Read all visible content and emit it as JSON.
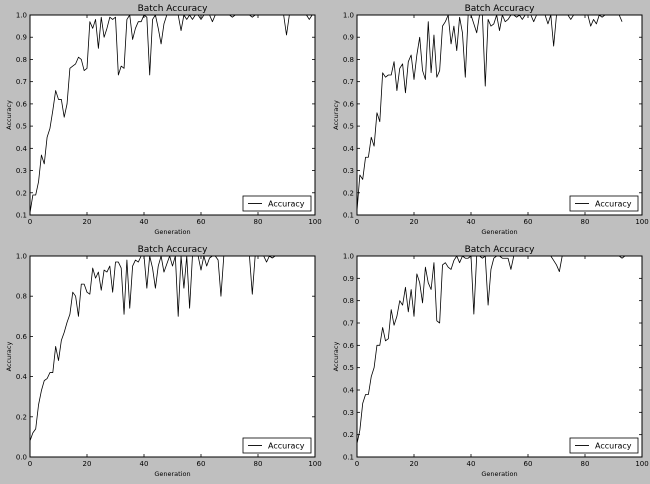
{
  "figure": {
    "background": "#bfbfbf",
    "line_color": "#000000"
  },
  "chart_data": [
    {
      "type": "line",
      "title": "Batch Accuracy",
      "xlabel": "Generation",
      "ylabel": "Accuracy",
      "xlim": [
        0,
        100
      ],
      "ylim": [
        0.1,
        1.0
      ],
      "xticks": [
        "0",
        "20",
        "40",
        "60",
        "80",
        "100"
      ],
      "yticks": [
        "0.1",
        "0.2",
        "0.3",
        "0.4",
        "0.5",
        "0.6",
        "0.7",
        "0.8",
        "0.9",
        "1.0"
      ],
      "grid": false,
      "legend": "bottom-right",
      "series": [
        {
          "name": "Accuracy",
          "x": [
            0,
            1,
            2,
            3,
            4,
            5,
            6,
            7,
            8,
            9,
            10,
            11,
            12,
            13,
            14,
            15,
            16,
            17,
            18,
            19,
            20,
            21,
            22,
            23,
            24,
            25,
            26,
            27,
            28,
            29,
            30,
            31,
            32,
            33,
            34,
            35,
            36,
            37,
            38,
            39,
            40,
            41,
            42,
            43,
            44,
            45,
            46,
            47,
            48,
            49,
            50,
            51,
            52,
            53,
            54,
            55,
            56,
            57,
            58,
            59,
            60,
            61,
            62,
            63,
            64,
            65,
            66,
            67,
            68,
            69,
            70,
            71,
            72,
            73,
            74,
            75,
            76,
            77,
            78,
            79,
            80,
            81,
            82,
            83,
            84,
            85,
            86,
            87,
            88,
            89,
            90,
            91,
            92,
            93,
            94,
            95,
            96,
            97,
            98,
            99
          ],
          "y": [
            0.11,
            0.19,
            0.19,
            0.25,
            0.37,
            0.33,
            0.45,
            0.49,
            0.57,
            0.66,
            0.62,
            0.62,
            0.54,
            0.6,
            0.76,
            0.77,
            0.78,
            0.81,
            0.8,
            0.75,
            0.76,
            0.97,
            0.94,
            0.98,
            0.85,
            0.99,
            0.9,
            0.94,
            0.99,
            0.98,
            0.99,
            0.73,
            0.77,
            0.76,
            0.98,
            1.0,
            0.89,
            0.94,
            0.97,
            0.97,
            1.0,
            0.99,
            0.73,
            0.98,
            1.0,
            0.94,
            0.87,
            0.96,
            1.0,
            1.0,
            1.0,
            1.0,
            1.0,
            0.93,
            1.0,
            0.98,
            1.0,
            0.98,
            1.0,
            1.0,
            0.98,
            1.0,
            1.0,
            1.0,
            0.97,
            1.0,
            1.0,
            1.0,
            1.0,
            1.0,
            1.0,
            0.99,
            1.0,
            1.0,
            1.0,
            1.0,
            1.0,
            1.0,
            0.99,
            1.0,
            1.0,
            1.0,
            1.0,
            1.0,
            1.0,
            1.0,
            1.0,
            1.0,
            1.0,
            1.0,
            0.91,
            1.0,
            1.0,
            1.0,
            1.0,
            1.0,
            1.0,
            1.0,
            0.98,
            1.0
          ]
        }
      ]
    },
    {
      "type": "line",
      "title": "Batch Accuracy",
      "xlabel": "Generation",
      "ylabel": "Accuracy",
      "xlim": [
        0,
        100
      ],
      "ylim": [
        0.1,
        1.0
      ],
      "xticks": [
        "0",
        "20",
        "40",
        "60",
        "80",
        "100"
      ],
      "yticks": [
        "0.1",
        "0.2",
        "0.3",
        "0.4",
        "0.5",
        "0.6",
        "0.7",
        "0.8",
        "0.9",
        "1.0"
      ],
      "grid": false,
      "legend": "bottom-right",
      "series": [
        {
          "name": "Accuracy",
          "x": [
            0,
            1,
            2,
            3,
            4,
            5,
            6,
            7,
            8,
            9,
            10,
            11,
            12,
            13,
            14,
            15,
            16,
            17,
            18,
            19,
            20,
            21,
            22,
            23,
            24,
            25,
            26,
            27,
            28,
            29,
            30,
            31,
            32,
            33,
            34,
            35,
            36,
            37,
            38,
            39,
            40,
            41,
            42,
            43,
            44,
            45,
            46,
            47,
            48,
            49,
            50,
            51,
            52,
            53,
            54,
            55,
            56,
            57,
            58,
            59,
            60,
            61,
            62,
            63,
            64,
            65,
            66,
            67,
            68,
            69,
            70,
            71,
            72,
            73,
            74,
            75,
            76,
            77,
            78,
            79,
            80,
            81,
            82,
            83,
            84,
            85,
            86,
            87,
            88,
            89,
            90,
            91,
            92,
            93
          ],
          "y": [
            0.12,
            0.28,
            0.26,
            0.36,
            0.36,
            0.45,
            0.41,
            0.56,
            0.52,
            0.74,
            0.72,
            0.73,
            0.73,
            0.79,
            0.66,
            0.76,
            0.78,
            0.65,
            0.79,
            0.82,
            0.71,
            0.82,
            0.9,
            0.75,
            0.71,
            0.97,
            0.74,
            0.91,
            0.72,
            0.75,
            0.95,
            0.97,
            1.0,
            0.87,
            0.95,
            0.84,
            0.99,
            0.92,
            0.72,
            1.0,
            1.0,
            0.96,
            0.92,
            1.0,
            1.0,
            0.68,
            0.98,
            0.95,
            0.96,
            1.0,
            0.93,
            1.0,
            0.97,
            0.98,
            1.0,
            1.0,
            0.99,
            1.0,
            0.98,
            1.0,
            1.0,
            1.0,
            0.97,
            1.0,
            1.0,
            1.0,
            1.0,
            0.96,
            1.0,
            0.86,
            1.0,
            1.0,
            1.0,
            1.0,
            1.0,
            0.98,
            1.0,
            1.0,
            1.0,
            1.0,
            1.0,
            1.0,
            0.95,
            0.98,
            0.96,
            1.0,
            0.99,
            1.0,
            1.0,
            1.0,
            1.0,
            1.0,
            1.0,
            0.97
          ]
        }
      ]
    },
    {
      "type": "line",
      "title": "Batch Accuracy",
      "xlabel": "Generation",
      "ylabel": "Accuracy",
      "xlim": [
        0,
        100
      ],
      "ylim": [
        0.0,
        1.0
      ],
      "xticks": [
        "0",
        "20",
        "40",
        "60",
        "80",
        "100"
      ],
      "yticks": [
        "0.0",
        "0.2",
        "0.4",
        "0.6",
        "0.8",
        "1.0"
      ],
      "grid": false,
      "legend": "bottom-right",
      "series": [
        {
          "name": "Accuracy",
          "x": [
            0,
            1,
            2,
            3,
            4,
            5,
            6,
            7,
            8,
            9,
            10,
            11,
            12,
            13,
            14,
            15,
            16,
            17,
            18,
            19,
            20,
            21,
            22,
            23,
            24,
            25,
            26,
            27,
            28,
            29,
            30,
            31,
            32,
            33,
            34,
            35,
            36,
            37,
            38,
            39,
            40,
            41,
            42,
            43,
            44,
            45,
            46,
            47,
            48,
            49,
            50,
            51,
            52,
            53,
            54,
            55,
            56,
            57,
            58,
            59,
            60,
            61,
            62,
            63,
            64,
            65,
            66,
            67,
            68,
            69,
            70,
            71,
            72,
            73,
            74,
            75,
            76,
            77,
            78,
            79,
            80,
            81,
            82,
            83,
            84,
            85,
            86,
            87,
            88,
            89,
            90,
            91,
            92,
            93,
            94,
            95,
            96,
            97,
            98,
            99
          ],
          "y": [
            0.08,
            0.12,
            0.14,
            0.26,
            0.33,
            0.38,
            0.39,
            0.42,
            0.42,
            0.55,
            0.48,
            0.58,
            0.62,
            0.67,
            0.71,
            0.82,
            0.8,
            0.7,
            0.86,
            0.86,
            0.82,
            0.81,
            0.94,
            0.89,
            0.92,
            0.83,
            0.93,
            0.92,
            0.95,
            0.82,
            0.97,
            0.97,
            0.94,
            0.71,
            0.98,
            0.74,
            0.95,
            0.98,
            0.97,
            1.0,
            1.0,
            0.84,
            1.0,
            0.94,
            0.84,
            0.95,
            1.0,
            0.92,
            0.96,
            1.0,
            0.95,
            1.0,
            0.7,
            1.0,
            0.84,
            1.0,
            0.74,
            1.0,
            1.0,
            1.0,
            0.93,
            1.0,
            0.95,
            0.99,
            1.0,
            1.0,
            0.98,
            0.8,
            1.0,
            1.0,
            1.0,
            1.0,
            1.0,
            1.0,
            1.0,
            1.0,
            1.0,
            1.0,
            0.81,
            1.0,
            1.0,
            1.0,
            1.0,
            0.97,
            1.0,
            0.99,
            1.0,
            1.0,
            1.0,
            1.0,
            1.0,
            1.0,
            1.0,
            1.0,
            1.0,
            1.0,
            1.0,
            1.0,
            1.0,
            1.0
          ]
        }
      ]
    },
    {
      "type": "line",
      "title": "Batch Accuracy",
      "xlabel": "Generation",
      "ylabel": "Accuracy",
      "xlim": [
        0,
        100
      ],
      "ylim": [
        0.1,
        1.0
      ],
      "xticks": [
        "0",
        "20",
        "40",
        "60",
        "80",
        "100"
      ],
      "yticks": [
        "0.1",
        "0.2",
        "0.3",
        "0.4",
        "0.5",
        "0.6",
        "0.7",
        "0.8",
        "0.9",
        "1.0"
      ],
      "grid": false,
      "legend": "bottom-right",
      "series": [
        {
          "name": "Accuracy",
          "x": [
            0,
            1,
            2,
            3,
            4,
            5,
            6,
            7,
            8,
            9,
            10,
            11,
            12,
            13,
            14,
            15,
            16,
            17,
            18,
            19,
            20,
            21,
            22,
            23,
            24,
            25,
            26,
            27,
            28,
            29,
            30,
            31,
            32,
            33,
            34,
            35,
            36,
            37,
            38,
            39,
            40,
            41,
            42,
            43,
            44,
            45,
            46,
            47,
            48,
            49,
            50,
            51,
            52,
            53,
            54,
            55,
            56,
            57,
            58,
            59,
            60,
            61,
            62,
            63,
            64,
            65,
            66,
            67,
            68,
            69,
            70,
            71,
            72,
            73,
            74,
            75,
            76,
            77,
            78,
            79,
            80,
            81,
            82,
            83,
            84,
            85,
            86,
            87,
            88,
            89,
            90,
            91,
            92,
            93,
            94,
            95,
            96,
            97,
            98,
            99
          ],
          "y": [
            0.16,
            0.22,
            0.34,
            0.38,
            0.38,
            0.46,
            0.5,
            0.6,
            0.6,
            0.68,
            0.62,
            0.63,
            0.76,
            0.69,
            0.73,
            0.8,
            0.78,
            0.86,
            0.75,
            0.85,
            0.73,
            0.92,
            0.88,
            0.79,
            0.95,
            0.88,
            0.85,
            0.97,
            0.71,
            0.7,
            0.96,
            0.97,
            0.95,
            0.94,
            0.98,
            1.0,
            0.97,
            1.0,
            0.99,
            0.99,
            1.0,
            0.74,
            1.0,
            1.0,
            0.99,
            1.0,
            0.78,
            0.94,
            0.99,
            1.0,
            1.0,
            0.99,
            0.99,
            0.99,
            0.94,
            1.0,
            1.0,
            1.0,
            1.0,
            1.0,
            1.0,
            1.0,
            1.0,
            1.0,
            1.0,
            1.0,
            1.0,
            1.0,
            1.0,
            0.98,
            0.96,
            0.93,
            1.0,
            1.0,
            1.0,
            1.0,
            1.0,
            1.0,
            1.0,
            1.0,
            1.0,
            1.0,
            1.0,
            1.0,
            1.0,
            1.0,
            1.0,
            1.0,
            1.0,
            1.0,
            1.0,
            1.0,
            1.0,
            0.99,
            1.0,
            1.0,
            1.0,
            1.0,
            1.0,
            1.0
          ]
        }
      ]
    }
  ]
}
